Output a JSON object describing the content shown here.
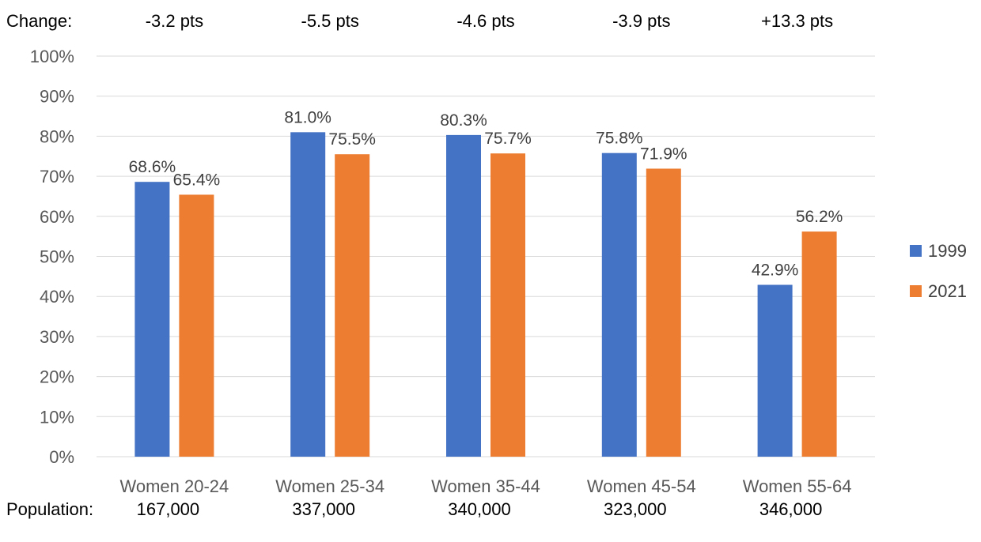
{
  "chart_data": {
    "type": "bar",
    "categories": [
      "Women 20-24",
      "Women 25-34",
      "Women 35-44",
      "Women 45-54",
      "Women 55-64"
    ],
    "series": [
      {
        "name": "1999",
        "values": [
          68.6,
          81.0,
          80.3,
          75.8,
          42.9
        ],
        "labels": [
          "68.6%",
          "81.0%",
          "80.3%",
          "75.8%",
          "42.9%"
        ],
        "color": "#4472C4"
      },
      {
        "name": "2021",
        "values": [
          65.4,
          75.5,
          75.7,
          71.9,
          56.2
        ],
        "labels": [
          "65.4%",
          "75.5%",
          "75.7%",
          "71.9%",
          "56.2%"
        ],
        "color": "#ED7D31"
      }
    ],
    "ylim": [
      0,
      100
    ],
    "yticks": [
      "0%",
      "10%",
      "20%",
      "30%",
      "40%",
      "50%",
      "60%",
      "70%",
      "80%",
      "90%",
      "100%"
    ],
    "grid": true,
    "legend": "right",
    "change_label": "Change:",
    "changes": [
      "-3.2 pts",
      "-5.5 pts",
      "-4.6 pts",
      "-3.9 pts",
      "+13.3 pts"
    ],
    "population_label": "Population:",
    "population": [
      "167,000",
      "337,000",
      "340,000",
      "323,000",
      "346,000"
    ],
    "gridline_color": "#D9D9D9"
  }
}
